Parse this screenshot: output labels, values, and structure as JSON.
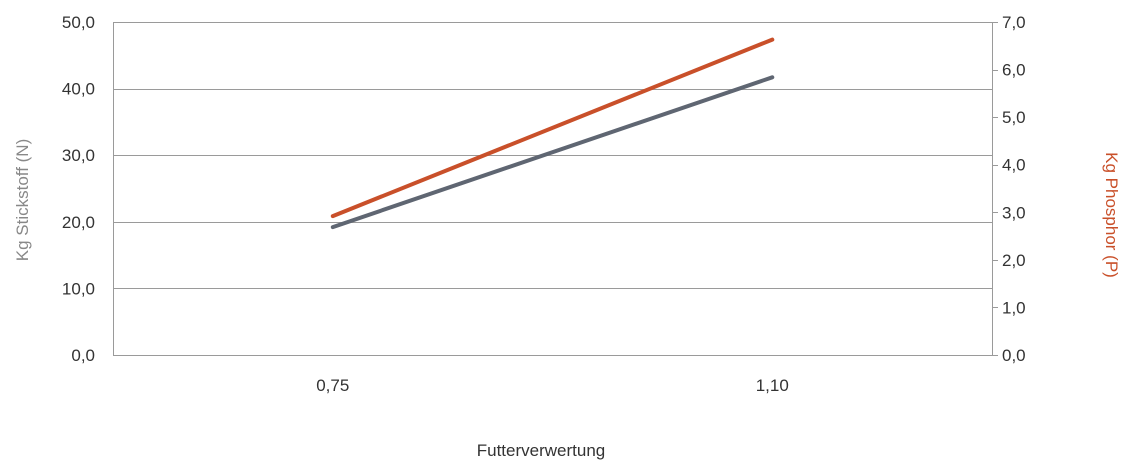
{
  "chart_data": {
    "type": "line",
    "categories": [
      "0,75",
      "1,10"
    ],
    "xlabel": "Futterverwertung",
    "y_left": {
      "label": "Kg Stickstoff (N)",
      "range": [
        0,
        50
      ],
      "ticks": [
        "0,0",
        "10,0",
        "20,0",
        "30,0",
        "40,0",
        "50,0"
      ],
      "tick_values": [
        0,
        10,
        20,
        30,
        40,
        50
      ],
      "label_color": "#888888"
    },
    "y_right": {
      "label": "Kg Phosphor (P)",
      "range": [
        0,
        7
      ],
      "ticks": [
        "0,0",
        "1,0",
        "2,0",
        "3,0",
        "4,0",
        "5,0",
        "6,0",
        "7,0"
      ],
      "tick_values": [
        0,
        1,
        2,
        3,
        4,
        5,
        6,
        7
      ],
      "label_color": "#c9502a"
    },
    "grid": true,
    "series": [
      {
        "axis": "left",
        "color": "#5f6672",
        "values": [
          19.2,
          41.7
        ]
      },
      {
        "axis": "right",
        "color": "#c9502a",
        "values": [
          2.92,
          6.63
        ]
      }
    ]
  }
}
